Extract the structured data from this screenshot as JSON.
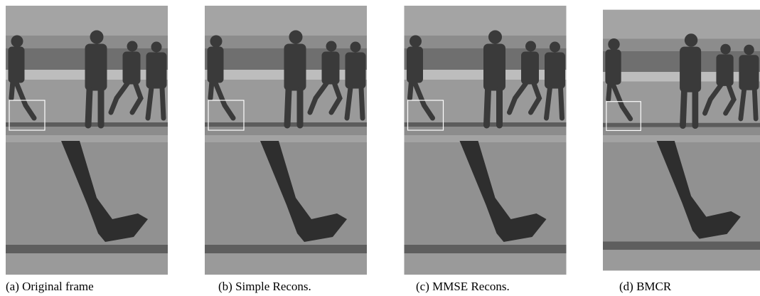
{
  "figure": {
    "panels": [
      {
        "caption": "(a) Original frame"
      },
      {
        "caption": "(b) Simple Recons."
      },
      {
        "caption": "(c) MMSE Recons."
      },
      {
        "caption": "(d) BMCR"
      }
    ]
  }
}
